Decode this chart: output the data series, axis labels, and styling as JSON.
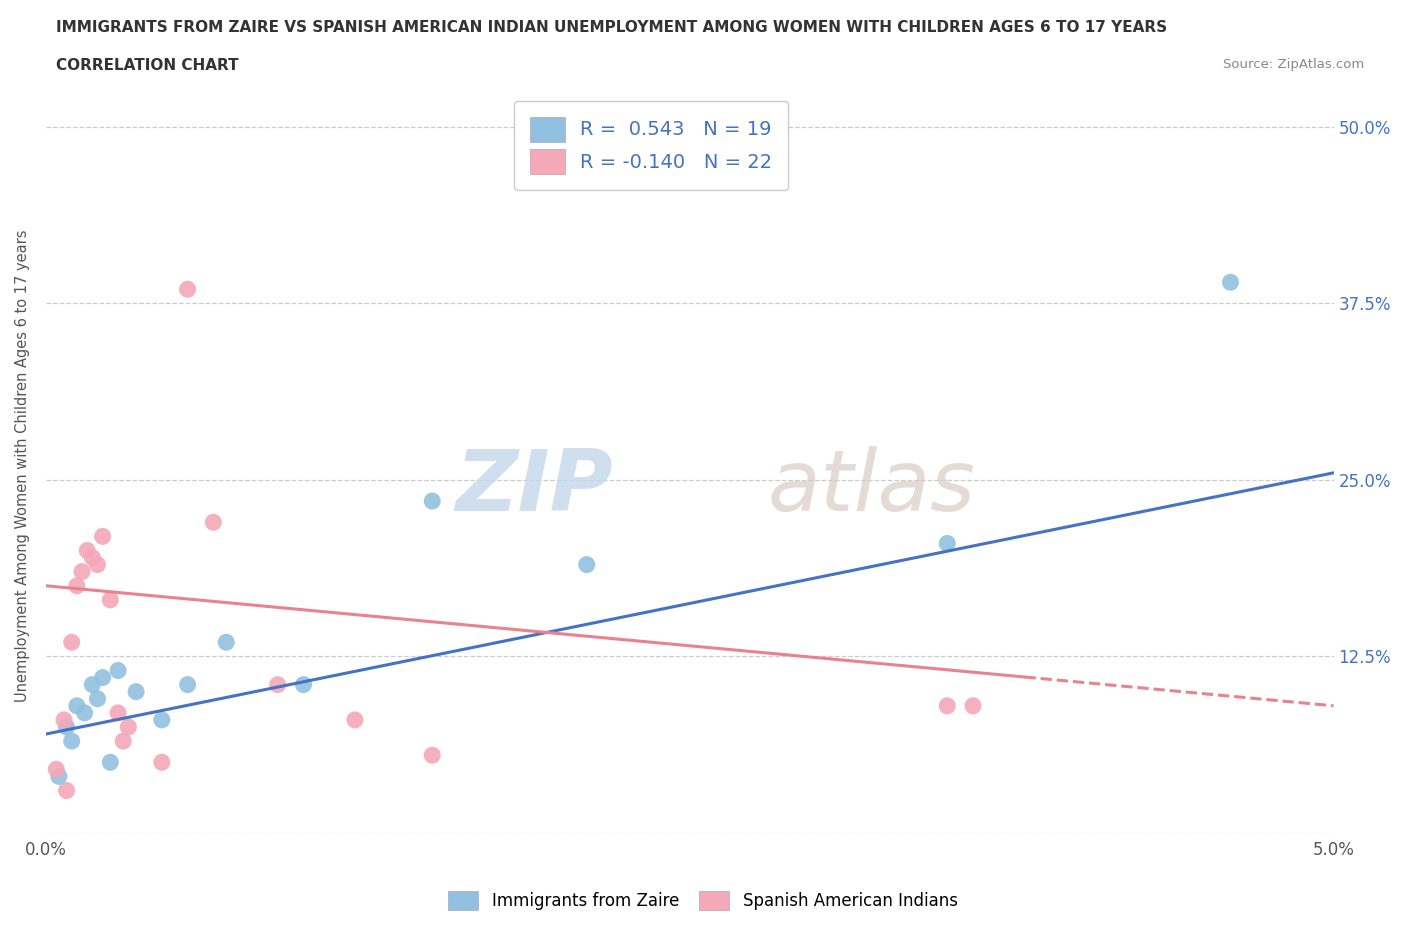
{
  "title": "IMMIGRANTS FROM ZAIRE VS SPANISH AMERICAN INDIAN UNEMPLOYMENT AMONG WOMEN WITH CHILDREN AGES 6 TO 17 YEARS",
  "subtitle": "CORRELATION CHART",
  "source": "Source: ZipAtlas.com",
  "ylabel": "Unemployment Among Women with Children Ages 6 to 17 years",
  "xlim": [
    0.0,
    5.0
  ],
  "ylim": [
    0.0,
    52.0
  ],
  "xticks": [
    0.0,
    1.0,
    2.0,
    3.0,
    4.0,
    5.0
  ],
  "xtick_labels": [
    "0.0%",
    "",
    "",
    "",
    "",
    "5.0%"
  ],
  "ytick_labels": [
    "",
    "12.5%",
    "25.0%",
    "37.5%",
    "50.0%"
  ],
  "yticks": [
    0.0,
    12.5,
    25.0,
    37.5,
    50.0
  ],
  "blue_color": "#92c0e0",
  "pink_color": "#f4a8b8",
  "blue_line_color": "#4472c4",
  "pink_line_color": "#e8828f",
  "r_blue": 0.543,
  "n_blue": 19,
  "r_pink": -0.14,
  "n_pink": 22,
  "legend_label_blue": "Immigrants from Zaire",
  "legend_label_pink": "Spanish American Indians",
  "watermark_zip": "ZIP",
  "watermark_atlas": "atlas",
  "blue_line_x0": 0.0,
  "blue_line_y0": 7.0,
  "blue_line_x1": 5.0,
  "blue_line_y1": 25.5,
  "pink_line_x0": 0.0,
  "pink_line_y0": 17.5,
  "pink_line_x1": 5.0,
  "pink_line_y1": 9.0,
  "pink_solid_end": 3.8,
  "blue_scatter_x": [
    0.05,
    0.08,
    0.1,
    0.12,
    0.15,
    0.18,
    0.2,
    0.22,
    0.25,
    0.28,
    0.35,
    0.45,
    0.55,
    0.7,
    1.0,
    1.5,
    2.1,
    3.5,
    4.6
  ],
  "blue_scatter_y": [
    4.0,
    7.5,
    6.5,
    9.0,
    8.5,
    10.5,
    9.5,
    11.0,
    5.0,
    11.5,
    10.0,
    8.0,
    10.5,
    13.5,
    10.5,
    23.5,
    19.0,
    20.5,
    39.0
  ],
  "pink_scatter_x": [
    0.04,
    0.07,
    0.08,
    0.1,
    0.12,
    0.14,
    0.16,
    0.18,
    0.2,
    0.22,
    0.25,
    0.28,
    0.3,
    0.32,
    0.45,
    0.55,
    0.65,
    0.9,
    1.2,
    1.5,
    3.5,
    3.6
  ],
  "pink_scatter_y": [
    4.5,
    8.0,
    3.0,
    13.5,
    17.5,
    18.5,
    20.0,
    19.5,
    19.0,
    21.0,
    16.5,
    8.5,
    6.5,
    7.5,
    5.0,
    38.5,
    22.0,
    10.5,
    8.0,
    5.5,
    9.0,
    9.0
  ],
  "background_color": "#ffffff",
  "grid_color": "#cccccc",
  "accent_color": "#4472c4"
}
